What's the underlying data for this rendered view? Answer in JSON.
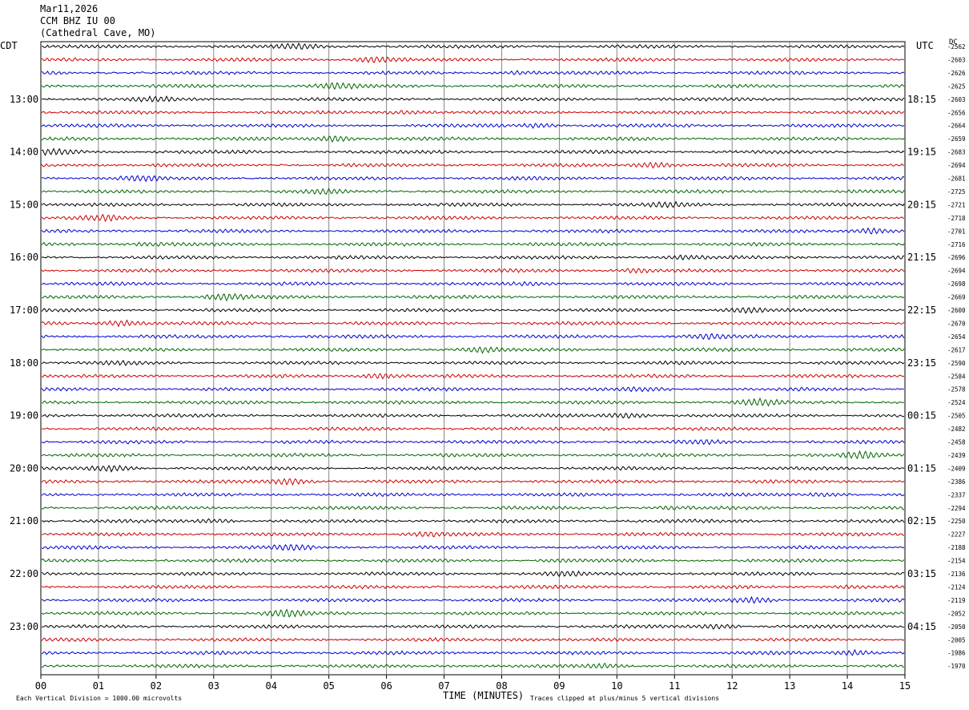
{
  "header": {
    "date": "Mar11,2026",
    "station": "CCM BHZ IU 00",
    "location": "(Cathedral Cave, MO)"
  },
  "left_tz": "CDT",
  "right_tz": "UTC",
  "dc_label": "DC",
  "footer": {
    "xlabel": "TIME (MINUTES)",
    "scale_note": "Each Vertical Division = 1000.00 microvolts",
    "clip_note": "Traces clipped at plus/minus 5 vertical divisions"
  },
  "chart_data": {
    "type": "line",
    "title": "CCM BHZ IU 00",
    "xlabel": "TIME (MINUTES)",
    "xlim": [
      0,
      15
    ],
    "x_ticks": [
      "00",
      "01",
      "02",
      "03",
      "04",
      "05",
      "06",
      "07",
      "08",
      "09",
      "10",
      "11",
      "12",
      "13",
      "14",
      "15"
    ],
    "trace_count": 48,
    "trace_colors": [
      "#000000",
      "#cc0000",
      "#0000cc",
      "#006600"
    ],
    "left_time_labels": [
      "13:00",
      "14:00",
      "15:00",
      "16:00",
      "17:00",
      "18:00",
      "19:00",
      "20:00",
      "21:00",
      "22:00",
      "23:00"
    ],
    "right_time_labels": [
      "18:15",
      "19:15",
      "20:15",
      "21:15",
      "22:15",
      "23:15",
      "00:15",
      "01:15",
      "02:15",
      "03:15",
      "04:15"
    ],
    "dc_offsets": [
      "-2562",
      "-2603",
      "-2626",
      "-2625",
      "-2603",
      "-2656",
      "-2664",
      "-2659",
      "-2683",
      "-2694",
      "-2681",
      "-2725",
      "-2721",
      "-2718",
      "-2701",
      "-2716",
      "-2696",
      "-2694",
      "-2698",
      "-2669",
      "-2600",
      "-2670",
      "-2654",
      "-2617",
      "-2590",
      "-2584",
      "-2578",
      "-2524",
      "-2505",
      "-2482",
      "-2458",
      "-2439",
      "-2409",
      "-2386",
      "-2337",
      "-2294",
      "-2250",
      "-2227",
      "-2188",
      "-2154",
      "-2136",
      "-2124",
      "-2119",
      "-2052",
      "-2050",
      "-2005",
      "-1986",
      "-1970"
    ]
  }
}
